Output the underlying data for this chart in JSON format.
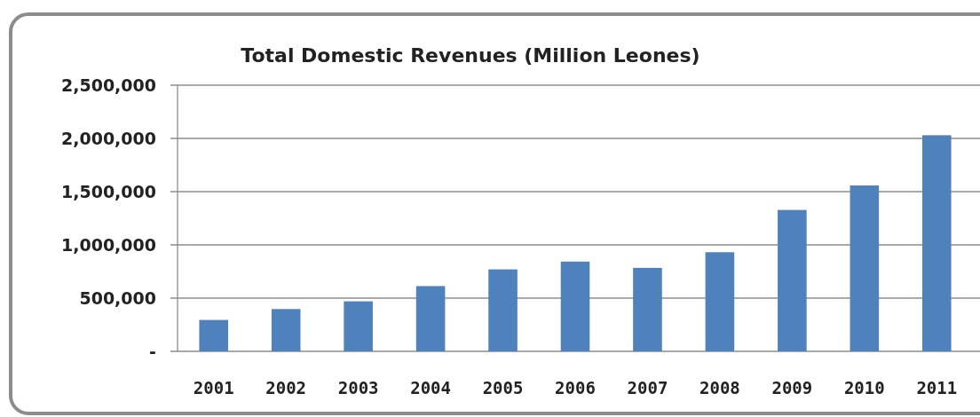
{
  "chart_data": {
    "type": "bar",
    "title": "Total Domestic Revenues (Million Leones)",
    "categories": [
      "2001",
      "2002",
      "2003",
      "2004",
      "2005",
      "2006",
      "2007",
      "2008",
      "2009",
      "2010",
      "2011"
    ],
    "values": [
      295000,
      397000,
      470000,
      613000,
      770000,
      843000,
      784000,
      931000,
      1328000,
      1558000,
      2030000
    ],
    "color": "#4f81bd",
    "ylim": [
      0,
      2500000
    ],
    "yticks": [
      {
        "value": 0,
        "label": "-"
      },
      {
        "value": 500000,
        "label": "500,000"
      },
      {
        "value": 1000000,
        "label": "1,000,000"
      },
      {
        "value": 1500000,
        "label": "1,500,000"
      },
      {
        "value": 2000000,
        "label": "2,000,000"
      },
      {
        "value": 2500000,
        "label": "2,500,000"
      }
    ],
    "grid": "y"
  }
}
